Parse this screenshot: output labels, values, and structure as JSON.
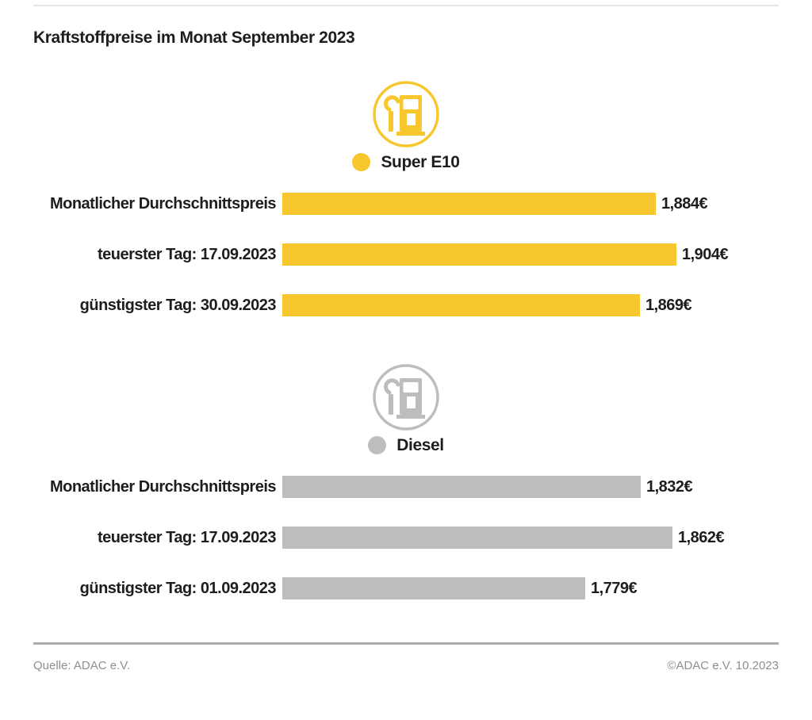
{
  "title": "Kraftstoffpreise im Monat September 2023",
  "chart_data": {
    "type": "bar",
    "orientation": "horizontal",
    "unit": "EUR/Liter",
    "grid": false,
    "legend_position": "above-each-group",
    "groups": [
      {
        "id": "super-e10",
        "legend": "Super E10",
        "icon": "fuel-pump-icon",
        "color": "#F8C72D",
        "categories": [
          "Monatlicher Durchschnittspreis",
          "teuerster Tag: 17.09.2023",
          "günstigster Tag: 30.09.2023"
        ],
        "values": [
          1.884,
          1.904,
          1.869
        ],
        "value_labels": [
          "1,884€",
          "1,904€",
          "1,869€"
        ]
      },
      {
        "id": "diesel",
        "legend": "Diesel",
        "icon": "fuel-pump-icon",
        "color": "#BDBDBD",
        "categories": [
          "Monatlicher Durchschnittspreis",
          "teuerster Tag: 17.09.2023",
          "günstigster Tag: 01.09.2023"
        ],
        "values": [
          1.832,
          1.862,
          1.779
        ],
        "value_labels": [
          "1,832€",
          "1,862€",
          "1,779€"
        ]
      }
    ]
  },
  "footer": {
    "source": "Quelle: ADAC e.V.",
    "copyright": "©ADAC e.V. 10.2023"
  }
}
